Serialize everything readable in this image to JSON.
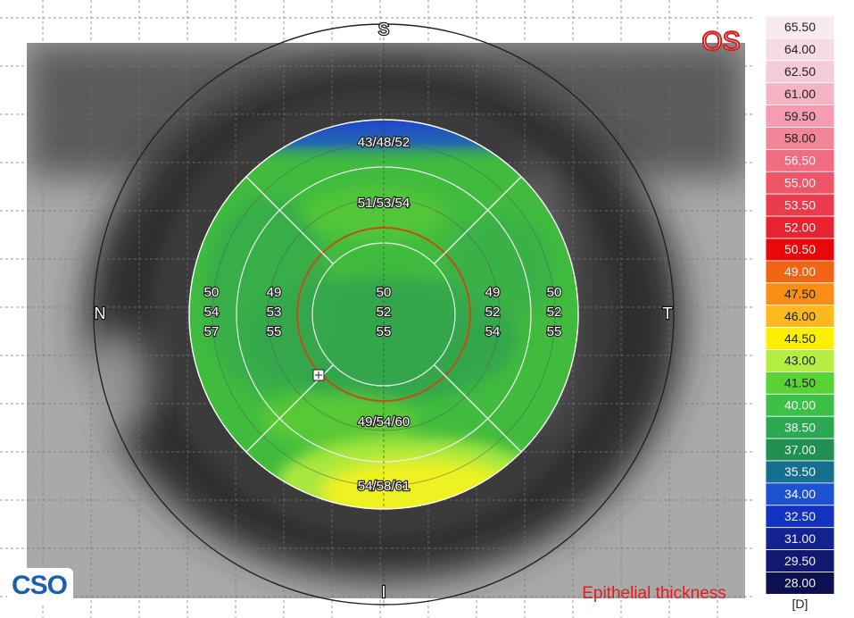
{
  "eye": "OS",
  "map_title": "Epithelial thickness",
  "logo": "CSO",
  "directions": {
    "superior": "S",
    "nasal": "N",
    "temporal": "T",
    "inferior": "I"
  },
  "sectors": [
    "43/48/52",
    "51/53/54",
    "49/54/60",
    "54/58/61"
  ],
  "columns": [
    [
      "50",
      "54",
      "57"
    ],
    [
      "49",
      "53",
      "55"
    ],
    [
      "50",
      "52",
      "55"
    ],
    [
      "49",
      "52",
      "54"
    ],
    [
      "50",
      "52",
      "55"
    ]
  ],
  "scale": {
    "entries": [
      {
        "label": "65.50",
        "color": "#f8eaf1"
      },
      {
        "label": "64.00",
        "color": "#f6dbe5"
      },
      {
        "label": "62.50",
        "color": "#f5cbd8"
      },
      {
        "label": "61.00",
        "color": "#f5b4c4"
      },
      {
        "label": "59.50",
        "color": "#f59cb0"
      },
      {
        "label": "58.00",
        "color": "#f28598"
      },
      {
        "label": "56.50",
        "color": "#f06c80"
      },
      {
        "label": "55.00",
        "color": "#ee5668"
      },
      {
        "label": "53.50",
        "color": "#ea3c4c"
      },
      {
        "label": "52.00",
        "color": "#e82230"
      },
      {
        "label": "50.50",
        "color": "#e80808"
      },
      {
        "label": "49.00",
        "color": "#f06414"
      },
      {
        "label": "47.50",
        "color": "#f88e14"
      },
      {
        "label": "46.00",
        "color": "#fcb81c"
      },
      {
        "label": "44.50",
        "color": "#fcf000"
      },
      {
        "label": "43.00",
        "color": "#b4ee44"
      },
      {
        "label": "41.50",
        "color": "#58d234"
      },
      {
        "label": "40.00",
        "color": "#3cc048"
      },
      {
        "label": "38.50",
        "color": "#2aa852"
      },
      {
        "label": "37.00",
        "color": "#209052"
      },
      {
        "label": "35.50",
        "color": "#14708e"
      },
      {
        "label": "34.00",
        "color": "#1c52d0"
      },
      {
        "label": "32.50",
        "color": "#1232c0"
      },
      {
        "label": "31.00",
        "color": "#122290"
      },
      {
        "label": "29.50",
        "color": "#101870"
      },
      {
        "label": "28.00",
        "color": "#0c1050"
      }
    ],
    "unit": "[D]"
  }
}
